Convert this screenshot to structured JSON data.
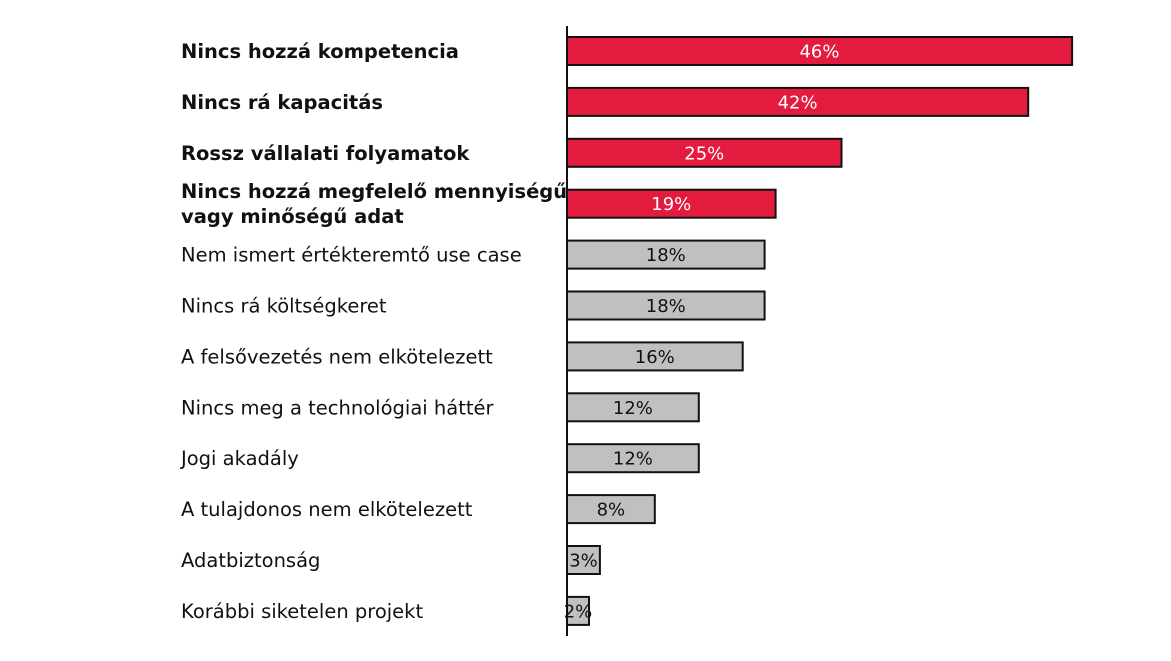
{
  "colors": {
    "highlight": "#e31b3e",
    "neutral": "#c0c0c0",
    "outline": "#111111",
    "highlight_text": "#ffffff",
    "neutral_text": "#111111"
  },
  "chart_data": {
    "type": "bar",
    "orientation": "horizontal",
    "categories": [
      [
        "Nincs hozzá kompetencia"
      ],
      [
        "Nincs rá kapacitás"
      ],
      [
        "Rossz vállalati folyamatok"
      ],
      [
        "Nincs hozzá megfelelő mennyiségű",
        "vagy minőségű adat"
      ],
      [
        "Nem ismert értékteremtő use case"
      ],
      [
        "Nincs rá költségkeret"
      ],
      [
        "A felsővezetés nem elkötelezett"
      ],
      [
        "Nincs meg a technológiai háttér"
      ],
      [
        "Jogi akadály"
      ],
      [
        "A tulajdonos nem elkötelezett"
      ],
      [
        "Adatbiztonság"
      ],
      [
        "Korábbi siketelen projekt"
      ]
    ],
    "values": [
      46,
      42,
      25,
      19,
      18,
      18,
      16,
      12,
      12,
      8,
      3,
      2
    ],
    "value_labels": [
      "46%",
      "42%",
      "25%",
      "19%",
      "18%",
      "18%",
      "16%",
      "12%",
      "12%",
      "8%",
      "3%",
      "2%"
    ],
    "highlighted": [
      true,
      true,
      true,
      true,
      false,
      false,
      false,
      false,
      false,
      false,
      false,
      false
    ],
    "unit": "%",
    "xlim": [
      0,
      50
    ],
    "grid": false,
    "legend": false
  }
}
